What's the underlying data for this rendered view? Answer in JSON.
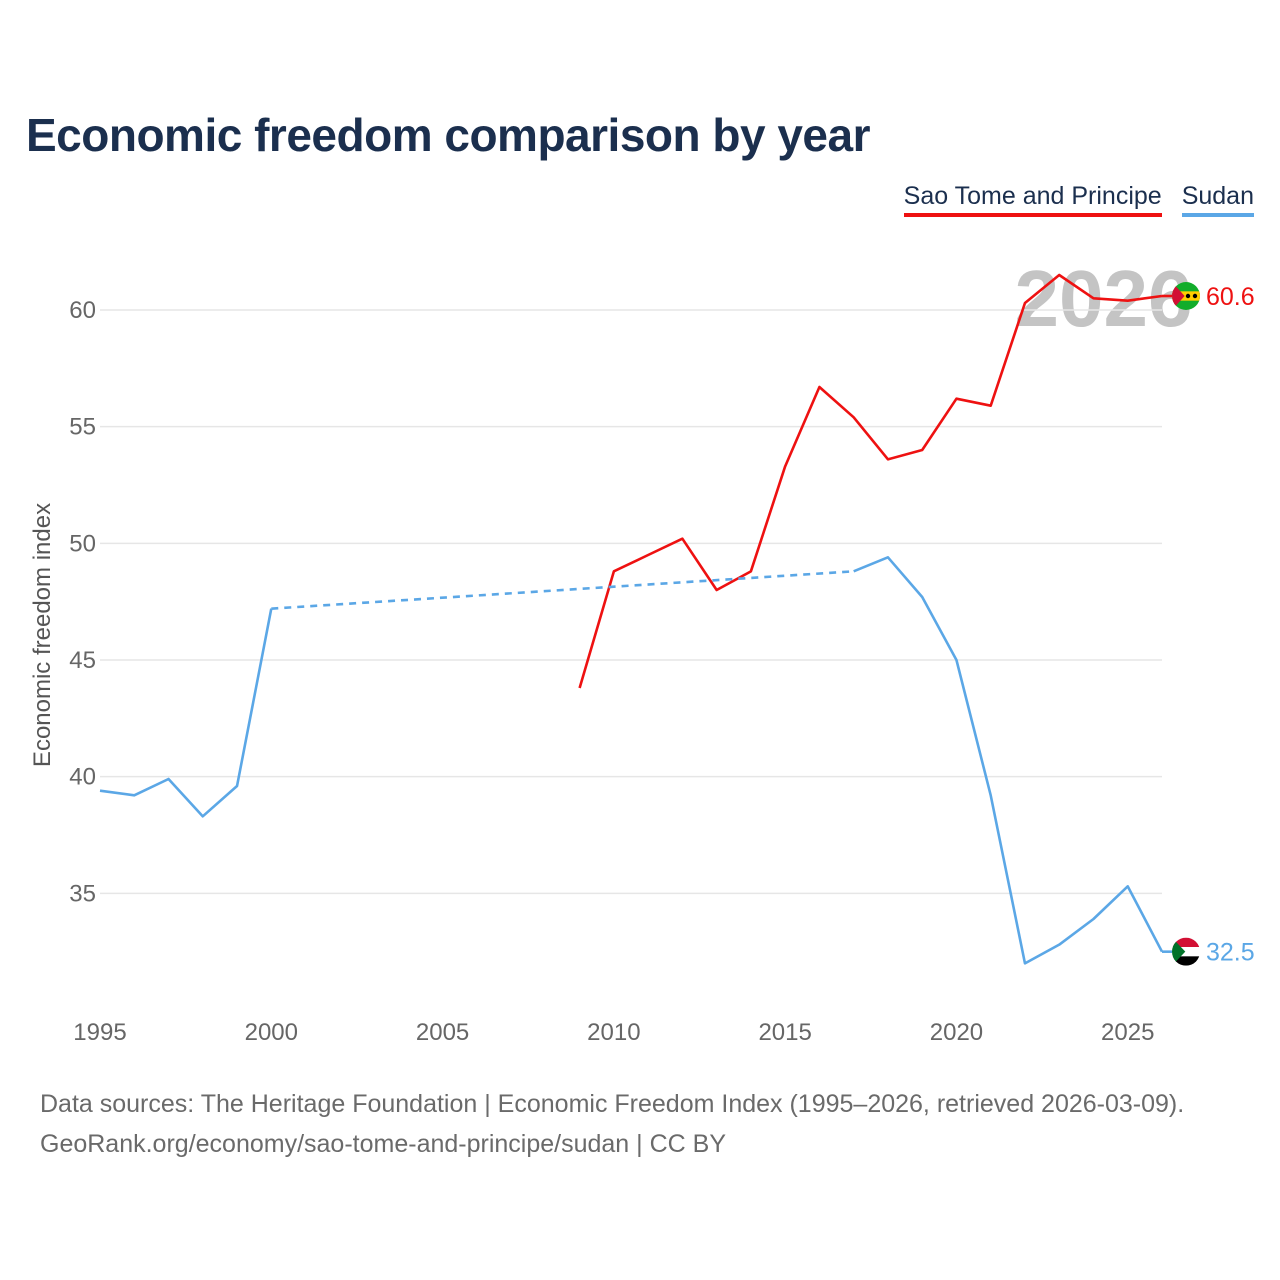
{
  "title": "Economic freedom comparison by year",
  "legend": [
    {
      "name": "Sao Tome and Principe",
      "color": "#ee1111"
    },
    {
      "name": "Sudan",
      "color": "#5ba7e6"
    }
  ],
  "footer": {
    "line1": "Data sources: The Heritage Foundation | Economic Freedom Index (1995–2026, retrieved 2026-03-09).",
    "line2": "GeoRank.org/economy/sao-tome-and-principe/sudan | CC BY"
  },
  "chart_data": {
    "type": "line",
    "title": "Economic freedom comparison by year",
    "xlabel": "",
    "ylabel": "Economic freedom index",
    "xlim": [
      1995,
      2026
    ],
    "ylim": [
      30,
      63
    ],
    "xticks": [
      1995,
      2000,
      2005,
      2010,
      2015,
      2020,
      2025
    ],
    "yticks": [
      35,
      40,
      45,
      50,
      55,
      60
    ],
    "current_year": "2026",
    "series": [
      {
        "name": "Sao Tome and Principe",
        "color": "#ee1111",
        "end_label": "60.6",
        "flag_icon": "sao-tome-and-principe-flag-icon",
        "points": [
          [
            2009,
            43.8
          ],
          [
            2010,
            48.8
          ],
          [
            2011,
            49.5
          ],
          [
            2012,
            50.2
          ],
          [
            2013,
            48.0
          ],
          [
            2014,
            48.8
          ],
          [
            2015,
            53.3
          ],
          [
            2016,
            56.7
          ],
          [
            2017,
            55.4
          ],
          [
            2018,
            53.6
          ],
          [
            2019,
            54.0
          ],
          [
            2020,
            56.2
          ],
          [
            2021,
            55.9
          ],
          [
            2022,
            60.3
          ],
          [
            2023,
            61.5
          ],
          [
            2024,
            60.5
          ],
          [
            2025,
            60.4
          ],
          [
            2026,
            60.6
          ]
        ],
        "gaps": []
      },
      {
        "name": "Sudan",
        "color": "#5ba7e6",
        "end_label": "32.5",
        "flag_icon": "sudan-flag-icon",
        "points": [
          [
            1995,
            39.4
          ],
          [
            1996,
            39.2
          ],
          [
            1997,
            39.9
          ],
          [
            1998,
            38.3
          ],
          [
            1999,
            39.6
          ],
          [
            2000,
            47.2
          ],
          [
            2017,
            48.8
          ],
          [
            2018,
            49.4
          ],
          [
            2019,
            47.7
          ],
          [
            2020,
            45.0
          ],
          [
            2021,
            39.2
          ],
          [
            2022,
            32.0
          ],
          [
            2023,
            32.8
          ],
          [
            2024,
            33.9
          ],
          [
            2025,
            35.3
          ],
          [
            2026,
            32.5
          ]
        ],
        "gaps": [
          [
            2000,
            2017
          ]
        ]
      }
    ]
  }
}
